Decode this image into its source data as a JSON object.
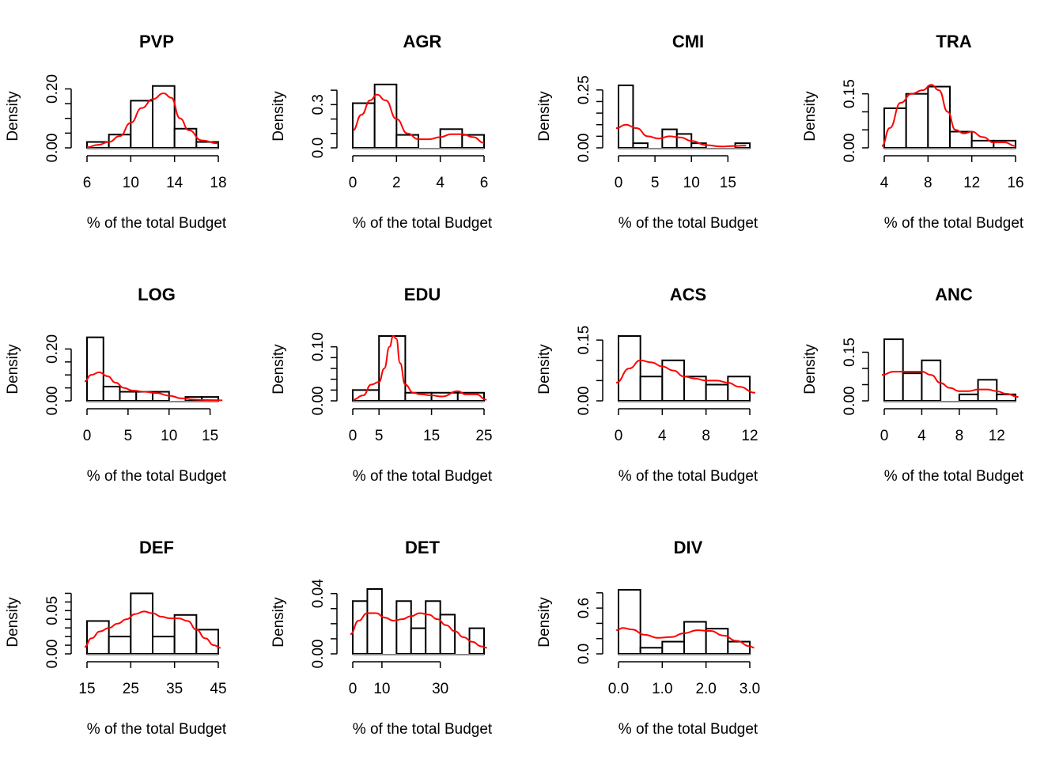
{
  "colors": {
    "density_line": "#ff0000",
    "bar_stroke": "#000000",
    "bar_fill": "#ffffff"
  },
  "chart_data": [
    {
      "type": "bar",
      "title": "PVP",
      "xlabel": "% of the total Budget",
      "ylabel": "Density",
      "xlim": [
        6,
        18
      ],
      "ylim": [
        0,
        0.22
      ],
      "xticks": [
        6,
        10,
        14,
        18
      ],
      "xtick_labels": [
        "6",
        "10",
        "14",
        "18"
      ],
      "yticks": [
        0,
        0.05,
        0.1,
        0.15,
        0.2
      ],
      "ytick_labels": [
        "0.00",
        "",
        "",
        "",
        "0.20"
      ],
      "bins": [
        [
          6,
          8,
          0.02
        ],
        [
          8,
          10,
          0.045
        ],
        [
          10,
          12,
          0.16
        ],
        [
          12,
          14,
          0.21
        ],
        [
          14,
          16,
          0.065
        ],
        [
          16,
          18,
          0.02
        ]
      ],
      "density": [
        [
          6,
          0.002
        ],
        [
          7,
          0.01
        ],
        [
          8,
          0.02
        ],
        [
          9,
          0.04
        ],
        [
          10,
          0.085
        ],
        [
          11,
          0.135
        ],
        [
          12,
          0.165
        ],
        [
          13,
          0.185
        ],
        [
          13.7,
          0.17
        ],
        [
          14.5,
          0.1
        ],
        [
          15.3,
          0.06
        ],
        [
          16.5,
          0.025
        ],
        [
          18,
          0.015
        ]
      ]
    },
    {
      "type": "bar",
      "title": "AGR",
      "xlabel": "% of the total Budget",
      "ylabel": "Density",
      "xlim": [
        0,
        6
      ],
      "ylim": [
        0,
        0.45
      ],
      "xticks": [
        0,
        2,
        4,
        6
      ],
      "xtick_labels": [
        "0",
        "2",
        "4",
        "6"
      ],
      "yticks": [
        0,
        0.1,
        0.2,
        0.3,
        0.4
      ],
      "ytick_labels": [
        "0.0",
        "",
        "",
        "0.3",
        ""
      ],
      "bins": [
        [
          0,
          1,
          0.31
        ],
        [
          1,
          2,
          0.44
        ],
        [
          2,
          3,
          0.09
        ],
        [
          3,
          4,
          0
        ],
        [
          4,
          5,
          0.13
        ],
        [
          5,
          6,
          0.09
        ]
      ],
      "density": [
        [
          0,
          0.12
        ],
        [
          0.4,
          0.23
        ],
        [
          0.8,
          0.33
        ],
        [
          1.1,
          0.37
        ],
        [
          1.5,
          0.33
        ],
        [
          2,
          0.2
        ],
        [
          2.5,
          0.1
        ],
        [
          3,
          0.06
        ],
        [
          3.5,
          0.06
        ],
        [
          4,
          0.075
        ],
        [
          4.5,
          0.095
        ],
        [
          5,
          0.095
        ],
        [
          5.5,
          0.075
        ],
        [
          6,
          0.035
        ]
      ]
    },
    {
      "type": "bar",
      "title": "CMI",
      "xlabel": "% of the total Budget",
      "ylabel": "Density",
      "xlim": [
        0,
        18
      ],
      "ylim": [
        0,
        0.28
      ],
      "xticks": [
        0,
        5,
        10,
        15
      ],
      "xtick_labels": [
        "0",
        "5",
        "10",
        "15"
      ],
      "yticks": [
        0,
        0.05,
        0.1,
        0.15,
        0.2,
        0.25
      ],
      "ytick_labels": [
        "0.00",
        "",
        "",
        "",
        "",
        "0.25"
      ],
      "bins": [
        [
          0,
          2,
          0.27
        ],
        [
          2,
          4,
          0.02
        ],
        [
          4,
          6,
          0
        ],
        [
          6,
          8,
          0.08
        ],
        [
          8,
          10,
          0.06
        ],
        [
          10,
          12,
          0.02
        ],
        [
          12,
          14,
          0
        ],
        [
          14,
          16,
          0
        ],
        [
          16,
          18,
          0.02
        ]
      ],
      "density": [
        [
          -0.5,
          0.085
        ],
        [
          1,
          0.1
        ],
        [
          2.5,
          0.085
        ],
        [
          4,
          0.05
        ],
        [
          5.5,
          0.04
        ],
        [
          7,
          0.05
        ],
        [
          8.5,
          0.045
        ],
        [
          10,
          0.03
        ],
        [
          12,
          0.012
        ],
        [
          14,
          0.006
        ],
        [
          16,
          0.008
        ],
        [
          17.5,
          0.01
        ]
      ]
    },
    {
      "type": "bar",
      "title": "TRA",
      "xlabel": "% of the total Budget",
      "ylabel": "Density",
      "xlim": [
        4,
        16
      ],
      "ylim": [
        0,
        0.18
      ],
      "xticks": [
        4,
        8,
        12,
        16
      ],
      "xtick_labels": [
        "4",
        "8",
        "12",
        "16"
      ],
      "yticks": [
        0,
        0.05,
        0.1,
        0.15
      ],
      "ytick_labels": [
        "0.00",
        "",
        "",
        "0.15"
      ],
      "bins": [
        [
          4,
          6,
          0.11
        ],
        [
          6,
          8,
          0.15
        ],
        [
          8,
          10,
          0.17
        ],
        [
          10,
          12,
          0.045
        ],
        [
          12,
          14,
          0.02
        ],
        [
          14,
          16,
          0.02
        ]
      ],
      "density": [
        [
          3.7,
          0.005
        ],
        [
          4.5,
          0.055
        ],
        [
          5.5,
          0.125
        ],
        [
          6.5,
          0.15
        ],
        [
          7.5,
          0.16
        ],
        [
          8.3,
          0.175
        ],
        [
          9,
          0.16
        ],
        [
          9.8,
          0.1
        ],
        [
          10.5,
          0.05
        ],
        [
          11.3,
          0.04
        ],
        [
          12,
          0.045
        ],
        [
          13,
          0.03
        ],
        [
          14,
          0.015
        ],
        [
          15,
          0.015
        ],
        [
          16,
          0.005
        ]
      ]
    },
    {
      "type": "bar",
      "title": "LOG",
      "xlabel": "% of the total Budget",
      "ylabel": "Density",
      "xlim": [
        0,
        16
      ],
      "ylim": [
        0,
        0.25
      ],
      "xticks": [
        0,
        5,
        10,
        15
      ],
      "xtick_labels": [
        "0",
        "5",
        "10",
        "15"
      ],
      "yticks": [
        0,
        0.05,
        0.1,
        0.15,
        0.2
      ],
      "ytick_labels": [
        "0.00",
        "",
        "",
        "",
        "0.20"
      ],
      "bins": [
        [
          0,
          2,
          0.245
        ],
        [
          2,
          4,
          0.055
        ],
        [
          4,
          6,
          0.035
        ],
        [
          6,
          8,
          0.035
        ],
        [
          8,
          10,
          0.035
        ],
        [
          10,
          12,
          0
        ],
        [
          12,
          14,
          0.015
        ],
        [
          14,
          16,
          0.015
        ]
      ],
      "density": [
        [
          -0.5,
          0.075
        ],
        [
          0.5,
          0.1
        ],
        [
          1.5,
          0.11
        ],
        [
          2.5,
          0.095
        ],
        [
          3.5,
          0.07
        ],
        [
          4.5,
          0.05
        ],
        [
          5.5,
          0.04
        ],
        [
          7,
          0.035
        ],
        [
          8.5,
          0.03
        ],
        [
          10,
          0.02
        ],
        [
          11.5,
          0.01
        ],
        [
          13,
          0.005
        ],
        [
          14.5,
          0.003
        ],
        [
          16.5,
          0.002
        ]
      ]
    },
    {
      "type": "bar",
      "title": "EDU",
      "xlabel": "% of the total Budget",
      "ylabel": "Density",
      "xlim": [
        0,
        25
      ],
      "ylim": [
        0,
        0.12
      ],
      "xticks": [
        0,
        5,
        15,
        25
      ],
      "xtick_labels": [
        "0",
        "5",
        "15",
        "25"
      ],
      "yticks": [
        0,
        0.02,
        0.04,
        0.06,
        0.08,
        0.1
      ],
      "ytick_labels": [
        "0.00",
        "",
        "",
        "",
        "",
        "0.10"
      ],
      "bins": [
        [
          0,
          5,
          0.02
        ],
        [
          5,
          10,
          0.12
        ],
        [
          10,
          15,
          0.015
        ],
        [
          15,
          20,
          0.015
        ],
        [
          20,
          25,
          0.015
        ]
      ],
      "density": [
        [
          0,
          0.002
        ],
        [
          2,
          0.01
        ],
        [
          3.5,
          0.03
        ],
        [
          5,
          0.035
        ],
        [
          6,
          0.06
        ],
        [
          7,
          0.1
        ],
        [
          7.7,
          0.12
        ],
        [
          8.3,
          0.115
        ],
        [
          9,
          0.07
        ],
        [
          10,
          0.03
        ],
        [
          11.5,
          0.015
        ],
        [
          13,
          0.012
        ],
        [
          15,
          0.01
        ],
        [
          17,
          0.008
        ],
        [
          20,
          0.018
        ],
        [
          21.5,
          0.012
        ],
        [
          23.5,
          0.012
        ],
        [
          25.5,
          0.002
        ]
      ]
    },
    {
      "type": "bar",
      "title": "ACS",
      "xlabel": "% of the total Budget",
      "ylabel": "Density",
      "xlim": [
        0,
        12
      ],
      "ylim": [
        0,
        0.16
      ],
      "xticks": [
        0,
        4,
        8,
        12
      ],
      "xtick_labels": [
        "0",
        "4",
        "8",
        "12"
      ],
      "yticks": [
        0,
        0.05,
        0.1,
        0.15
      ],
      "ytick_labels": [
        "0.00",
        "",
        "",
        "0.15"
      ],
      "bins": [
        [
          0,
          2,
          0.16
        ],
        [
          2,
          4,
          0.06
        ],
        [
          4,
          6,
          0.1
        ],
        [
          6,
          8,
          0.06
        ],
        [
          8,
          10,
          0.04
        ],
        [
          10,
          12,
          0.06
        ]
      ],
      "density": [
        [
          -0.3,
          0.045
        ],
        [
          1,
          0.08
        ],
        [
          2,
          0.1
        ],
        [
          3,
          0.095
        ],
        [
          4,
          0.085
        ],
        [
          5,
          0.075
        ],
        [
          6,
          0.06
        ],
        [
          7,
          0.055
        ],
        [
          8,
          0.05
        ],
        [
          9,
          0.05
        ],
        [
          10,
          0.045
        ],
        [
          11,
          0.035
        ],
        [
          12.5,
          0.02
        ]
      ]
    },
    {
      "type": "bar",
      "title": "ANC",
      "xlabel": "% of the total Budget",
      "ylabel": "Density",
      "xlim": [
        0,
        14
      ],
      "ylim": [
        0,
        0.2
      ],
      "xticks": [
        0,
        4,
        8,
        12
      ],
      "xtick_labels": [
        "0",
        "4",
        "8",
        "12"
      ],
      "yticks": [
        0,
        0.05,
        0.1,
        0.15
      ],
      "ytick_labels": [
        "0.00",
        "",
        "",
        "0.15"
      ],
      "bins": [
        [
          0,
          2,
          0.19
        ],
        [
          2,
          4,
          0.085
        ],
        [
          4,
          6,
          0.125
        ],
        [
          6,
          8,
          0
        ],
        [
          8,
          10,
          0.02
        ],
        [
          10,
          12,
          0.065
        ],
        [
          12,
          14,
          0.02
        ]
      ],
      "density": [
        [
          -0.3,
          0.08
        ],
        [
          1,
          0.09
        ],
        [
          2,
          0.09
        ],
        [
          3,
          0.09
        ],
        [
          4,
          0.09
        ],
        [
          5,
          0.08
        ],
        [
          6,
          0.055
        ],
        [
          7,
          0.04
        ],
        [
          8,
          0.03
        ],
        [
          9,
          0.03
        ],
        [
          10,
          0.035
        ],
        [
          11,
          0.035
        ],
        [
          12,
          0.03
        ],
        [
          13,
          0.022
        ],
        [
          14.3,
          0.012
        ]
      ]
    },
    {
      "type": "bar",
      "title": "DEF",
      "xlabel": "% of the total Budget",
      "ylabel": "Density",
      "xlim": [
        15,
        45
      ],
      "ylim": [
        0,
        0.075
      ],
      "xticks": [
        15,
        25,
        35,
        45
      ],
      "xtick_labels": [
        "15",
        "25",
        "35",
        "45"
      ],
      "yticks": [
        0,
        0.01,
        0.02,
        0.03,
        0.04,
        0.05,
        0.06,
        0.07
      ],
      "ytick_labels": [
        "0.00",
        "",
        "",
        "",
        "",
        "0.05",
        "",
        ""
      ],
      "bins": [
        [
          15,
          20,
          0.038
        ],
        [
          20,
          25,
          0.02
        ],
        [
          25,
          30,
          0.07
        ],
        [
          30,
          35,
          0.02
        ],
        [
          35,
          40,
          0.045
        ],
        [
          40,
          45,
          0.028
        ]
      ],
      "density": [
        [
          14.2,
          0.008
        ],
        [
          16,
          0.018
        ],
        [
          18,
          0.026
        ],
        [
          20,
          0.03
        ],
        [
          22,
          0.035
        ],
        [
          24,
          0.04
        ],
        [
          26,
          0.046
        ],
        [
          28,
          0.049
        ],
        [
          30,
          0.047
        ],
        [
          32,
          0.043
        ],
        [
          34,
          0.041
        ],
        [
          36,
          0.041
        ],
        [
          38,
          0.038
        ],
        [
          40,
          0.028
        ],
        [
          42,
          0.018
        ],
        [
          44,
          0.01
        ],
        [
          45.5,
          0.007
        ]
      ]
    },
    {
      "type": "bar",
      "title": "DET",
      "xlabel": "% of the total Budget",
      "ylabel": "Density",
      "xlim": [
        0,
        45
      ],
      "ylim": [
        0,
        0.043
      ],
      "xticks": [
        0,
        10,
        30
      ],
      "xtick_labels": [
        "0",
        "10",
        "30"
      ],
      "yticks": [
        0,
        0.01,
        0.02,
        0.03,
        0.04
      ],
      "ytick_labels": [
        "0.00",
        "",
        "",
        "",
        "0.04"
      ],
      "bins": [
        [
          0,
          5,
          0.035
        ],
        [
          5,
          10,
          0.043
        ],
        [
          10,
          15,
          0
        ],
        [
          15,
          20,
          0.035
        ],
        [
          20,
          25,
          0.017
        ],
        [
          25,
          30,
          0.035
        ],
        [
          30,
          35,
          0.026
        ],
        [
          35,
          40,
          0
        ],
        [
          40,
          45,
          0.017
        ]
      ],
      "density": [
        [
          -1,
          0.013
        ],
        [
          2,
          0.022
        ],
        [
          5,
          0.027
        ],
        [
          8,
          0.027
        ],
        [
          11,
          0.024
        ],
        [
          14,
          0.022
        ],
        [
          17,
          0.023
        ],
        [
          20,
          0.025
        ],
        [
          23,
          0.027
        ],
        [
          26,
          0.026
        ],
        [
          29,
          0.023
        ],
        [
          32,
          0.019
        ],
        [
          35,
          0.015
        ],
        [
          38,
          0.011
        ],
        [
          41,
          0.008
        ],
        [
          44,
          0.005
        ],
        [
          46,
          0.004
        ]
      ]
    },
    {
      "type": "bar",
      "title": "DIV",
      "xlabel": "% of the total Budget",
      "ylabel": "Density",
      "xlim": [
        0,
        3
      ],
      "ylim": [
        0,
        0.85
      ],
      "xticks": [
        0,
        1,
        2,
        3
      ],
      "xtick_labels": [
        "0.0",
        "1.0",
        "2.0",
        "3.0"
      ],
      "yticks": [
        0,
        0.2,
        0.4,
        0.6,
        0.8
      ],
      "ytick_labels": [
        "0.0",
        "",
        "",
        "0.6",
        ""
      ],
      "bins": [
        [
          0,
          0.5,
          0.84
        ],
        [
          0.5,
          1,
          0.08
        ],
        [
          1,
          1.5,
          0.16
        ],
        [
          1.5,
          2,
          0.42
        ],
        [
          2,
          2.5,
          0.33
        ],
        [
          2.5,
          3,
          0.16
        ]
      ],
      "density": [
        [
          -0.05,
          0.31
        ],
        [
          0.1,
          0.34
        ],
        [
          0.3,
          0.32
        ],
        [
          0.6,
          0.25
        ],
        [
          0.9,
          0.21
        ],
        [
          1.2,
          0.22
        ],
        [
          1.5,
          0.27
        ],
        [
          1.8,
          0.31
        ],
        [
          2.1,
          0.3
        ],
        [
          2.4,
          0.24
        ],
        [
          2.7,
          0.17
        ],
        [
          3.0,
          0.1
        ],
        [
          3.1,
          0.08
        ]
      ]
    }
  ]
}
